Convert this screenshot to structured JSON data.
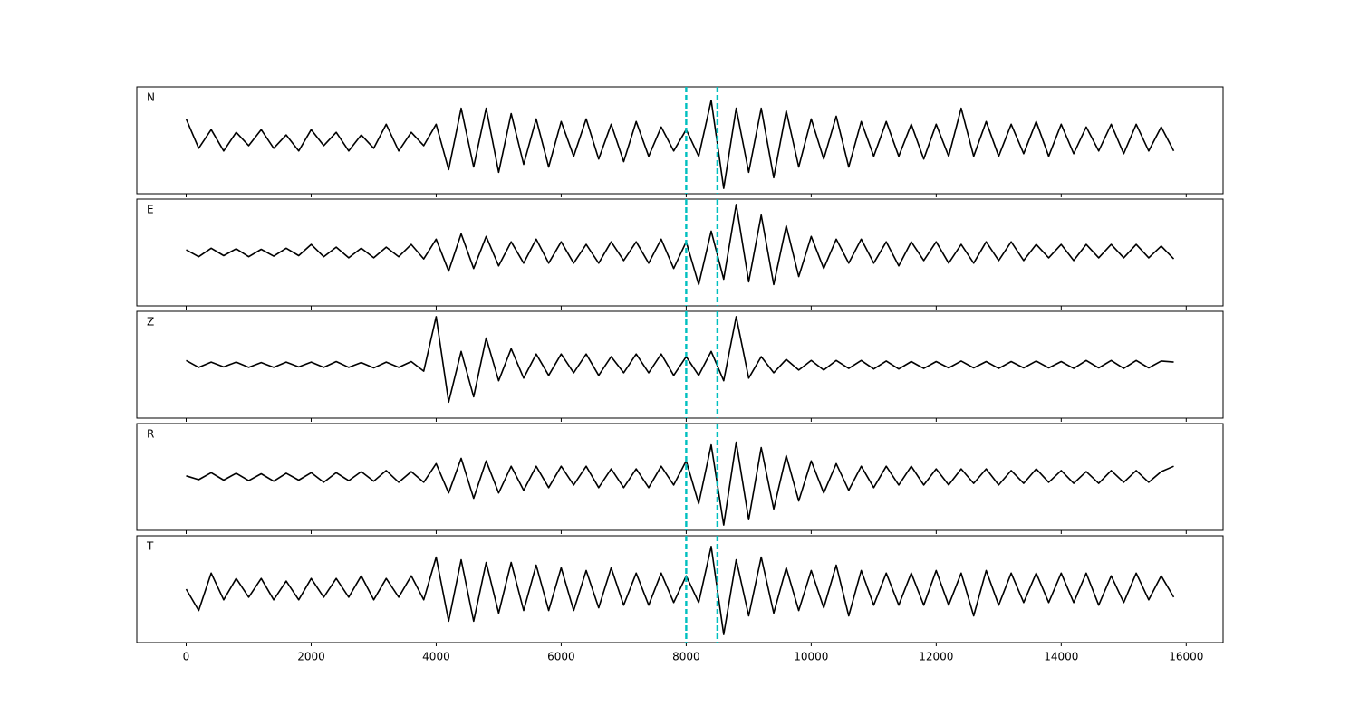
{
  "chart_data": {
    "type": "line",
    "stacked_panels": true,
    "x": [
      0,
      200,
      400,
      600,
      800,
      1000,
      1200,
      1400,
      1600,
      1800,
      2000,
      2200,
      2400,
      2600,
      2800,
      3000,
      3200,
      3400,
      3600,
      3800,
      4000,
      4200,
      4400,
      4600,
      4800,
      5000,
      5200,
      5400,
      5600,
      5800,
      6000,
      6200,
      6400,
      6600,
      6800,
      7000,
      7200,
      7400,
      7600,
      7800,
      8000,
      8200,
      8400,
      8600,
      8800,
      9000,
      9200,
      9400,
      9600,
      9800,
      10000,
      10200,
      10400,
      10600,
      10800,
      11000,
      11200,
      11400,
      11600,
      11800,
      12000,
      12200,
      12400,
      12600,
      12800,
      13000,
      13200,
      13400,
      13600,
      13800,
      14000,
      14200,
      14400,
      14600,
      14800,
      15000,
      15200,
      15400,
      15600,
      15800
    ],
    "xlim": [
      -790,
      16590
    ],
    "ylim": [
      -1,
      1
    ],
    "xticks": [
      0,
      2000,
      4000,
      6000,
      8000,
      10000,
      12000,
      14000,
      16000
    ],
    "vlines": [
      8000,
      8500
    ],
    "vline_color": "#00bfbf",
    "series": [
      {
        "name": "N",
        "color": "#000000",
        "values": [
          0.4,
          -0.15,
          0.2,
          -0.2,
          0.15,
          -0.1,
          0.2,
          -0.15,
          0.1,
          -0.2,
          0.2,
          -0.1,
          0.15,
          -0.2,
          0.1,
          -0.15,
          0.3,
          -0.2,
          0.15,
          -0.1,
          0.3,
          -0.55,
          0.6,
          -0.5,
          0.6,
          -0.6,
          0.5,
          -0.45,
          0.4,
          -0.5,
          0.35,
          -0.3,
          0.4,
          -0.35,
          0.3,
          -0.4,
          0.35,
          -0.3,
          0.25,
          -0.2,
          0.2,
          -0.3,
          0.75,
          -0.9,
          0.6,
          -0.6,
          0.6,
          -0.7,
          0.55,
          -0.5,
          0.4,
          -0.35,
          0.45,
          -0.5,
          0.35,
          -0.3,
          0.35,
          -0.3,
          0.3,
          -0.35,
          0.3,
          -0.3,
          0.6,
          -0.3,
          0.35,
          -0.3,
          0.3,
          -0.25,
          0.35,
          -0.3,
          0.3,
          -0.25,
          0.25,
          -0.2,
          0.3,
          -0.25,
          0.3,
          -0.2,
          0.25,
          -0.2
        ]
      },
      {
        "name": "E",
        "color": "#000000",
        "values": [
          0.05,
          -0.08,
          0.08,
          -0.06,
          0.07,
          -0.08,
          0.06,
          -0.07,
          0.08,
          -0.06,
          0.15,
          -0.08,
          0.1,
          -0.1,
          0.08,
          -0.1,
          0.1,
          -0.08,
          0.15,
          -0.12,
          0.25,
          -0.35,
          0.35,
          -0.3,
          0.3,
          -0.25,
          0.2,
          -0.2,
          0.25,
          -0.2,
          0.2,
          -0.2,
          0.15,
          -0.2,
          0.2,
          -0.15,
          0.2,
          -0.2,
          0.25,
          -0.3,
          0.2,
          -0.6,
          0.4,
          -0.5,
          0.9,
          -0.55,
          0.7,
          -0.6,
          0.5,
          -0.45,
          0.3,
          -0.3,
          0.25,
          -0.2,
          0.25,
          -0.2,
          0.2,
          -0.25,
          0.2,
          -0.15,
          0.2,
          -0.2,
          0.15,
          -0.2,
          0.2,
          -0.15,
          0.2,
          -0.15,
          0.15,
          -0.1,
          0.15,
          -0.15,
          0.15,
          -0.1,
          0.15,
          -0.1,
          0.15,
          -0.1,
          0.12,
          -0.12
        ]
      },
      {
        "name": "Z",
        "color": "#000000",
        "values": [
          0.08,
          -0.05,
          0.05,
          -0.04,
          0.05,
          -0.05,
          0.04,
          -0.05,
          0.05,
          -0.04,
          0.05,
          -0.05,
          0.06,
          -0.05,
          0.04,
          -0.06,
          0.05,
          -0.05,
          0.06,
          -0.12,
          0.9,
          -0.7,
          0.25,
          -0.6,
          0.5,
          -0.3,
          0.3,
          -0.25,
          0.2,
          -0.2,
          0.2,
          -0.15,
          0.2,
          -0.2,
          0.15,
          -0.15,
          0.2,
          -0.15,
          0.2,
          -0.2,
          0.15,
          -0.2,
          0.25,
          -0.3,
          0.9,
          -0.25,
          0.15,
          -0.15,
          0.1,
          -0.1,
          0.08,
          -0.1,
          0.08,
          -0.07,
          0.08,
          -0.08,
          0.07,
          -0.08,
          0.06,
          -0.07,
          0.06,
          -0.06,
          0.07,
          -0.06,
          0.06,
          -0.07,
          0.06,
          -0.06,
          0.07,
          -0.06,
          0.06,
          -0.07,
          0.08,
          -0.06,
          0.08,
          -0.07,
          0.08,
          -0.06,
          0.07,
          0.05
        ]
      },
      {
        "name": "R",
        "color": "#000000",
        "values": [
          0.02,
          -0.05,
          0.08,
          -0.06,
          0.07,
          -0.07,
          0.06,
          -0.08,
          0.07,
          -0.06,
          0.08,
          -0.1,
          0.08,
          -0.07,
          0.1,
          -0.08,
          0.12,
          -0.1,
          0.1,
          -0.1,
          0.25,
          -0.3,
          0.35,
          -0.4,
          0.3,
          -0.3,
          0.2,
          -0.25,
          0.2,
          -0.2,
          0.2,
          -0.15,
          0.2,
          -0.2,
          0.15,
          -0.2,
          0.15,
          -0.2,
          0.2,
          -0.15,
          0.3,
          -0.5,
          0.6,
          -0.9,
          0.65,
          -0.8,
          0.55,
          -0.6,
          0.4,
          -0.45,
          0.3,
          -0.3,
          0.25,
          -0.25,
          0.2,
          -0.2,
          0.2,
          -0.15,
          0.2,
          -0.15,
          0.15,
          -0.15,
          0.15,
          -0.12,
          0.15,
          -0.15,
          0.12,
          -0.12,
          0.15,
          -0.1,
          0.12,
          -0.12,
          0.1,
          -0.12,
          0.12,
          -0.1,
          0.12,
          -0.1,
          0.1,
          0.2
        ]
      },
      {
        "name": "T",
        "color": "#000000",
        "values": [
          0.0,
          -0.4,
          0.3,
          -0.2,
          0.2,
          -0.15,
          0.2,
          -0.2,
          0.15,
          -0.2,
          0.2,
          -0.15,
          0.2,
          -0.15,
          0.25,
          -0.2,
          0.2,
          -0.15,
          0.25,
          -0.2,
          0.6,
          -0.6,
          0.55,
          -0.6,
          0.5,
          -0.45,
          0.5,
          -0.4,
          0.45,
          -0.4,
          0.4,
          -0.4,
          0.35,
          -0.35,
          0.4,
          -0.3,
          0.3,
          -0.3,
          0.3,
          -0.25,
          0.25,
          -0.25,
          0.8,
          -0.85,
          0.55,
          -0.5,
          0.6,
          -0.45,
          0.4,
          -0.4,
          0.35,
          -0.35,
          0.45,
          -0.5,
          0.35,
          -0.3,
          0.3,
          -0.3,
          0.3,
          -0.3,
          0.35,
          -0.3,
          0.3,
          -0.5,
          0.35,
          -0.3,
          0.3,
          -0.25,
          0.3,
          -0.25,
          0.3,
          -0.25,
          0.3,
          -0.3,
          0.25,
          -0.25,
          0.3,
          -0.2,
          0.25,
          -0.15
        ]
      }
    ]
  }
}
